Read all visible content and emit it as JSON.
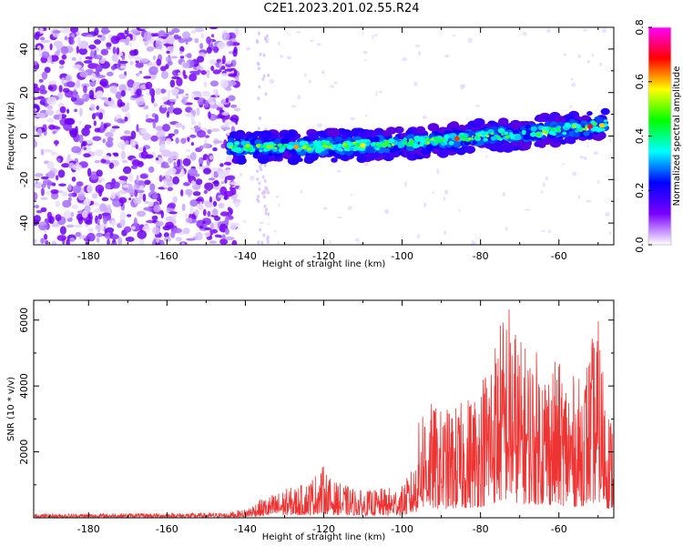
{
  "title": "C2E1.2023.201.02.55.R24",
  "chart_data": [
    {
      "type": "heatmap",
      "xlabel": "Height of straight line (km)",
      "ylabel": "Frequency (Hz)",
      "xlim": [
        -194,
        -46
      ],
      "ylim": [
        -50,
        50
      ],
      "xticks": [
        -180,
        -160,
        -140,
        -120,
        -100,
        -80,
        -60
      ],
      "yticks": [
        -40,
        -20,
        0,
        20,
        40
      ],
      "colorbar": {
        "label": "Normalized spectral amplitude",
        "range": [
          0.0,
          0.8
        ],
        "ticks": [
          0.0,
          0.2,
          0.4,
          0.6,
          0.8
        ],
        "colors": [
          "#ffffff",
          "#7a00ff",
          "#0000ff",
          "#00ffff",
          "#00ff00",
          "#ffff00",
          "#ff0000",
          "#ff00ff"
        ]
      },
      "ridge": {
        "x": [
          -144,
          -125,
          -105,
          -90,
          -80,
          -70,
          -60,
          -48
        ],
        "frequency": [
          -5,
          -5,
          -4,
          -2,
          0,
          1,
          3,
          5
        ]
      },
      "noise_region": {
        "x": [
          -194,
          -142
        ],
        "frequency": [
          -50,
          50
        ]
      }
    },
    {
      "type": "line",
      "xlabel": "Height of straight line (km)",
      "ylabel": "SNR (10 * v/v)",
      "xlim": [
        -194,
        -46
      ],
      "ylim": [
        0,
        6600
      ],
      "xticks": [
        -180,
        -160,
        -140,
        -120,
        -100,
        -80,
        -60
      ],
      "yticks": [
        2000,
        4000,
        6000
      ],
      "color": "#ee3333",
      "envelope": {
        "x": [
          -194,
          -145,
          -140,
          -137,
          -130,
          -125,
          -120,
          -118,
          -110,
          -100,
          -97,
          -95,
          -90,
          -85,
          -80,
          -78,
          -75,
          -73,
          -70,
          -65,
          -60,
          -55,
          -50,
          -47
        ],
        "y": [
          120,
          150,
          260,
          500,
          850,
          1000,
          1550,
          1100,
          800,
          950,
          1550,
          3600,
          3200,
          3400,
          4100,
          5000,
          5900,
          6600,
          5300,
          4900,
          4600,
          4100,
          5900,
          3100
        ]
      }
    }
  ]
}
